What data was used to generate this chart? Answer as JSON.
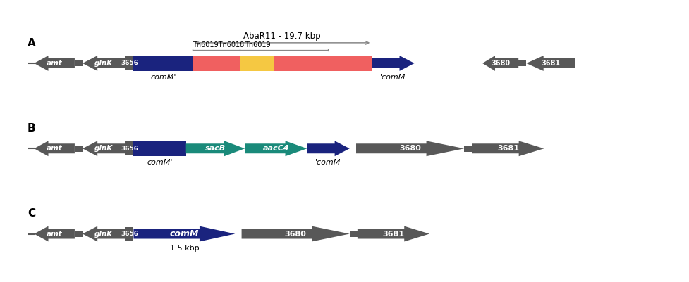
{
  "fig_width": 9.77,
  "fig_height": 4.01,
  "bg_color": "#ffffff",
  "label_A": "A",
  "label_B": "B",
  "label_C": "C",
  "abaR11_text": "AbaR11 - 19.7 kbp",
  "tn_text1": "Tn6019Tn6018",
  "tn_text2": "Tn6019",
  "comM_prime_text": "comM'",
  "prime_comM_text": "'comM",
  "comM_text": "comM",
  "sacB_text": "sacB",
  "aacC4_text": "aacC4",
  "size_text": "1.5 kbp",
  "gray_color": "#585858",
  "dark_blue": "#1a237e",
  "blue": "#1c3faa",
  "red_color": "#f06060",
  "yellow_color": "#f5c842",
  "teal_color": "#1a8a7a",
  "white": "#ffffff",
  "black": "#000000",
  "line_color": "#888888"
}
